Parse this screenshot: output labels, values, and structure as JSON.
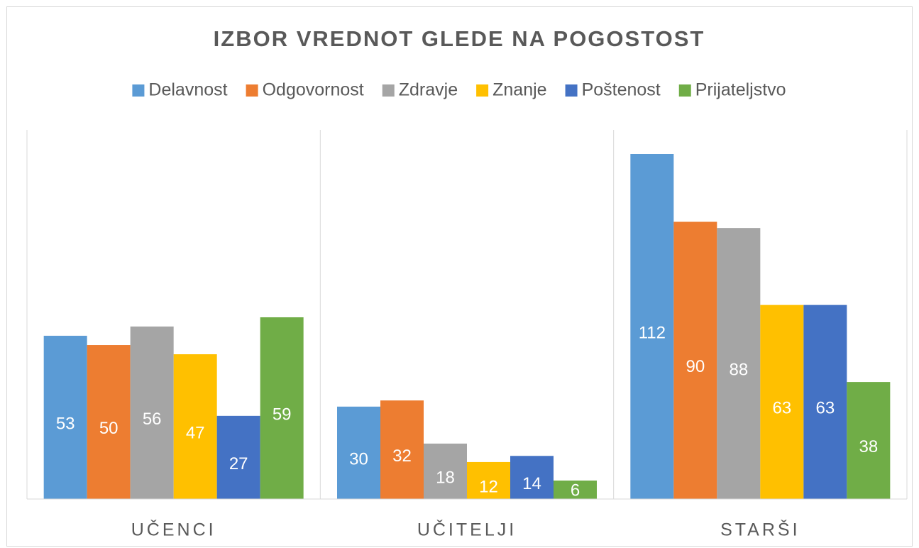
{
  "chart_data": {
    "type": "bar",
    "title": "IZBOR VREDNOT GLEDE NA POGOSTOST",
    "categories": [
      "UČENCI",
      "UČITELJI",
      "STARŠI"
    ],
    "series": [
      {
        "name": "Delavnost",
        "color": "#5b9bd5",
        "values": [
          53,
          30,
          112
        ]
      },
      {
        "name": "Odgovornost",
        "color": "#ed7d31",
        "values": [
          50,
          32,
          90
        ]
      },
      {
        "name": "Zdravje",
        "color": "#a5a5a5",
        "values": [
          56,
          18,
          88
        ]
      },
      {
        "name": "Znanje",
        "color": "#ffc000",
        "values": [
          47,
          12,
          63
        ]
      },
      {
        "name": "Poštenost",
        "color": "#4472c4",
        "values": [
          27,
          14,
          63
        ]
      },
      {
        "name": "Prijateljstvo",
        "color": "#70ad47",
        "values": [
          59,
          6,
          38
        ]
      }
    ],
    "legend": "top"
  }
}
